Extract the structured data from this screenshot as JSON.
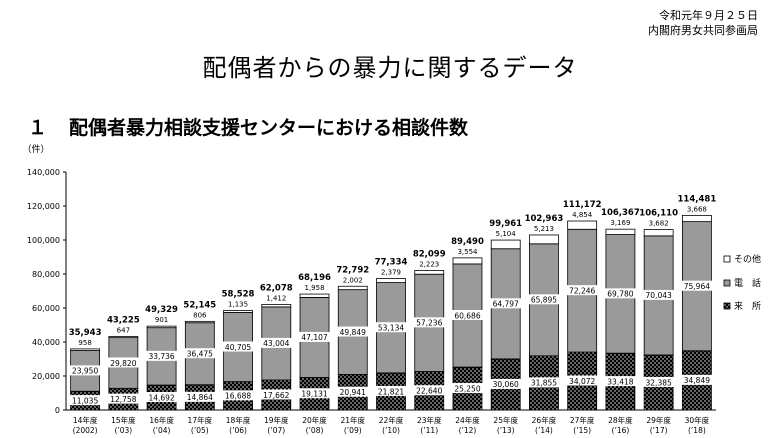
{
  "header": {
    "date": "令和元年９月２５日",
    "org": "内閣府男女共同参画局"
  },
  "page_title": "配偶者からの暴力に関するデータ",
  "section": {
    "number": "１",
    "title": "配偶者暴力相談支援センターにおける相談件数"
  },
  "chart_data": {
    "type": "bar",
    "stacked": true,
    "unit_label": "（件）",
    "ylim": [
      0,
      140000
    ],
    "yticks": [
      0,
      20000,
      40000,
      60000,
      80000,
      100000,
      120000,
      140000
    ],
    "ytick_labels": [
      "0",
      "20,000",
      "40,000",
      "60,000",
      "80,000",
      "100,000",
      "120,000",
      "140,000"
    ],
    "categories": [
      {
        "line1": "14年度",
        "line2": "(2002)"
      },
      {
        "line1": "15年度",
        "line2": "(’03)"
      },
      {
        "line1": "16年度",
        "line2": "(’04)"
      },
      {
        "line1": "17年度",
        "line2": "(’05)"
      },
      {
        "line1": "18年度",
        "line2": "(’06)"
      },
      {
        "line1": "19年度",
        "line2": "(’07)"
      },
      {
        "line1": "20年度",
        "line2": "(’08)"
      },
      {
        "line1": "21年度",
        "line2": "(’09)"
      },
      {
        "line1": "22年度",
        "line2": "(’10)"
      },
      {
        "line1": "23年度",
        "line2": "(’11)"
      },
      {
        "line1": "24年度",
        "line2": "(’12)"
      },
      {
        "line1": "25年度",
        "line2": "(’13)"
      },
      {
        "line1": "26年度",
        "line2": "(’14)"
      },
      {
        "line1": "27年度",
        "line2": "(’15)"
      },
      {
        "line1": "28年度",
        "line2": "(’16)"
      },
      {
        "line1": "29年度",
        "line2": "(’17)"
      },
      {
        "line1": "30年度",
        "line2": "(’18)"
      }
    ],
    "totals": [
      35943,
      43225,
      49329,
      52145,
      58528,
      62078,
      68196,
      72792,
      77334,
      82099,
      89490,
      99961,
      102963,
      111172,
      106367,
      106110,
      114481
    ],
    "total_labels": [
      "35,943",
      "43,225",
      "49,329",
      "52,145",
      "58,528",
      "62,078",
      "68,196",
      "72,792",
      "77,334",
      "82,099",
      "89,490",
      "99,961",
      "102,963",
      "111,172",
      "106,367",
      "106,110",
      "114,481"
    ],
    "series": [
      {
        "name": "来　所",
        "pattern": "dots",
        "values": [
          11035,
          12758,
          14692,
          14864,
          16688,
          17662,
          19131,
          20941,
          21821,
          22640,
          25250,
          30060,
          31855,
          34072,
          33418,
          32385,
          34849
        ],
        "labels": [
          "11,035",
          "12,758",
          "14,692",
          "14,864",
          "16,688",
          "17,662",
          "19,131",
          "20,941",
          "21,821",
          "22,640",
          "25,250",
          "30,060",
          "31,855",
          "34,072",
          "33,418",
          "32,385",
          "34,849"
        ]
      },
      {
        "name": "電　話",
        "color": "#9a9a9a",
        "values": [
          23950,
          29820,
          33736,
          36475,
          40705,
          43004,
          47107,
          49849,
          53134,
          57236,
          60686,
          64797,
          65895,
          72246,
          69780,
          70043,
          75964
        ],
        "labels": [
          "23,950",
          "29,820",
          "33,736",
          "36,475",
          "40,705",
          "43,004",
          "47,107",
          "49,849",
          "53,134",
          "57,236",
          "60,686",
          "64,797",
          "65,895",
          "72,246",
          "69,780",
          "70,043",
          "75,964"
        ]
      },
      {
        "name": "その他",
        "color": "#ffffff",
        "values": [
          958,
          647,
          901,
          806,
          1135,
          1412,
          1958,
          2002,
          2379,
          2223,
          3554,
          5104,
          5213,
          4854,
          3169,
          3682,
          3668
        ],
        "labels": [
          "958",
          "647",
          "901",
          "806",
          "1,135",
          "1,412",
          "1,958",
          "2,002",
          "2,379",
          "2,223",
          "3,554",
          "5,104",
          "5,213",
          "4,854",
          "3,169",
          "3,682",
          "3,668"
        ]
      }
    ],
    "legend_position": "right"
  }
}
